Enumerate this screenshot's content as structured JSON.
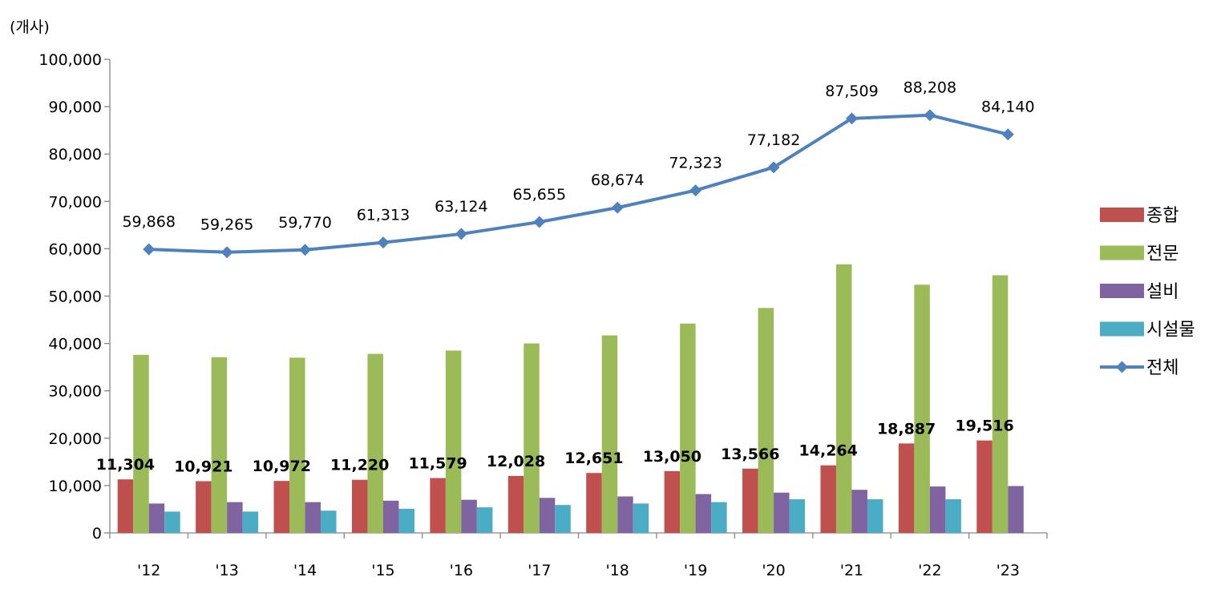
{
  "chart_data": {
    "type": "bar",
    "unit_label": "(개사)",
    "categories": [
      "'12",
      "'13",
      "'14",
      "'15",
      "'16",
      "'17",
      "'18",
      "'19",
      "'20",
      "'21",
      "'22",
      "'23"
    ],
    "ylim": [
      0,
      100000
    ],
    "yticks": [
      "0",
      "10,000",
      "20,000",
      "30,000",
      "40,000",
      "50,000",
      "60,000",
      "70,000",
      "80,000",
      "90,000",
      "100,000"
    ],
    "ytick_values": [
      0,
      10000,
      20000,
      30000,
      40000,
      50000,
      60000,
      70000,
      80000,
      90000,
      100000
    ],
    "grid": false,
    "legend_position": "right",
    "series": [
      {
        "name": "종합",
        "kind": "bar",
        "color": "#C0504D",
        "values": [
          11304,
          10921,
          10972,
          11220,
          11579,
          12028,
          12651,
          13050,
          13566,
          14264,
          18887,
          19516
        ],
        "labels": [
          "11,304",
          "10,921",
          "10,972",
          "11,220",
          "11,579",
          "12,028",
          "12,651",
          "13,050",
          "13,566",
          "14,264",
          "18,887",
          "19,516"
        ]
      },
      {
        "name": "전문",
        "kind": "bar",
        "color": "#9BBB59",
        "values": [
          37600,
          37100,
          37000,
          37800,
          38500,
          40000,
          41700,
          44200,
          47500,
          56700,
          52400,
          54400
        ]
      },
      {
        "name": "설비",
        "kind": "bar",
        "color": "#8064A2",
        "values": [
          6200,
          6500,
          6500,
          6800,
          7000,
          7400,
          7700,
          8200,
          8500,
          9100,
          9800,
          9900
        ]
      },
      {
        "name": "시설물",
        "kind": "bar",
        "color": "#4BACC6",
        "values": [
          4500,
          4500,
          4700,
          5100,
          5400,
          5900,
          6200,
          6500,
          7100,
          7100,
          7100,
          null
        ]
      },
      {
        "name": "전체",
        "kind": "line",
        "color": "#4F81BD",
        "values": [
          59868,
          59265,
          59770,
          61313,
          63124,
          65655,
          68674,
          72323,
          77182,
          87509,
          88208,
          84140
        ],
        "labels": [
          "59,868",
          "59,265",
          "59,770",
          "61,313",
          "63,124",
          "65,655",
          "68,674",
          "72,323",
          "77,182",
          "87,509",
          "88,208",
          "84,140"
        ]
      }
    ]
  }
}
